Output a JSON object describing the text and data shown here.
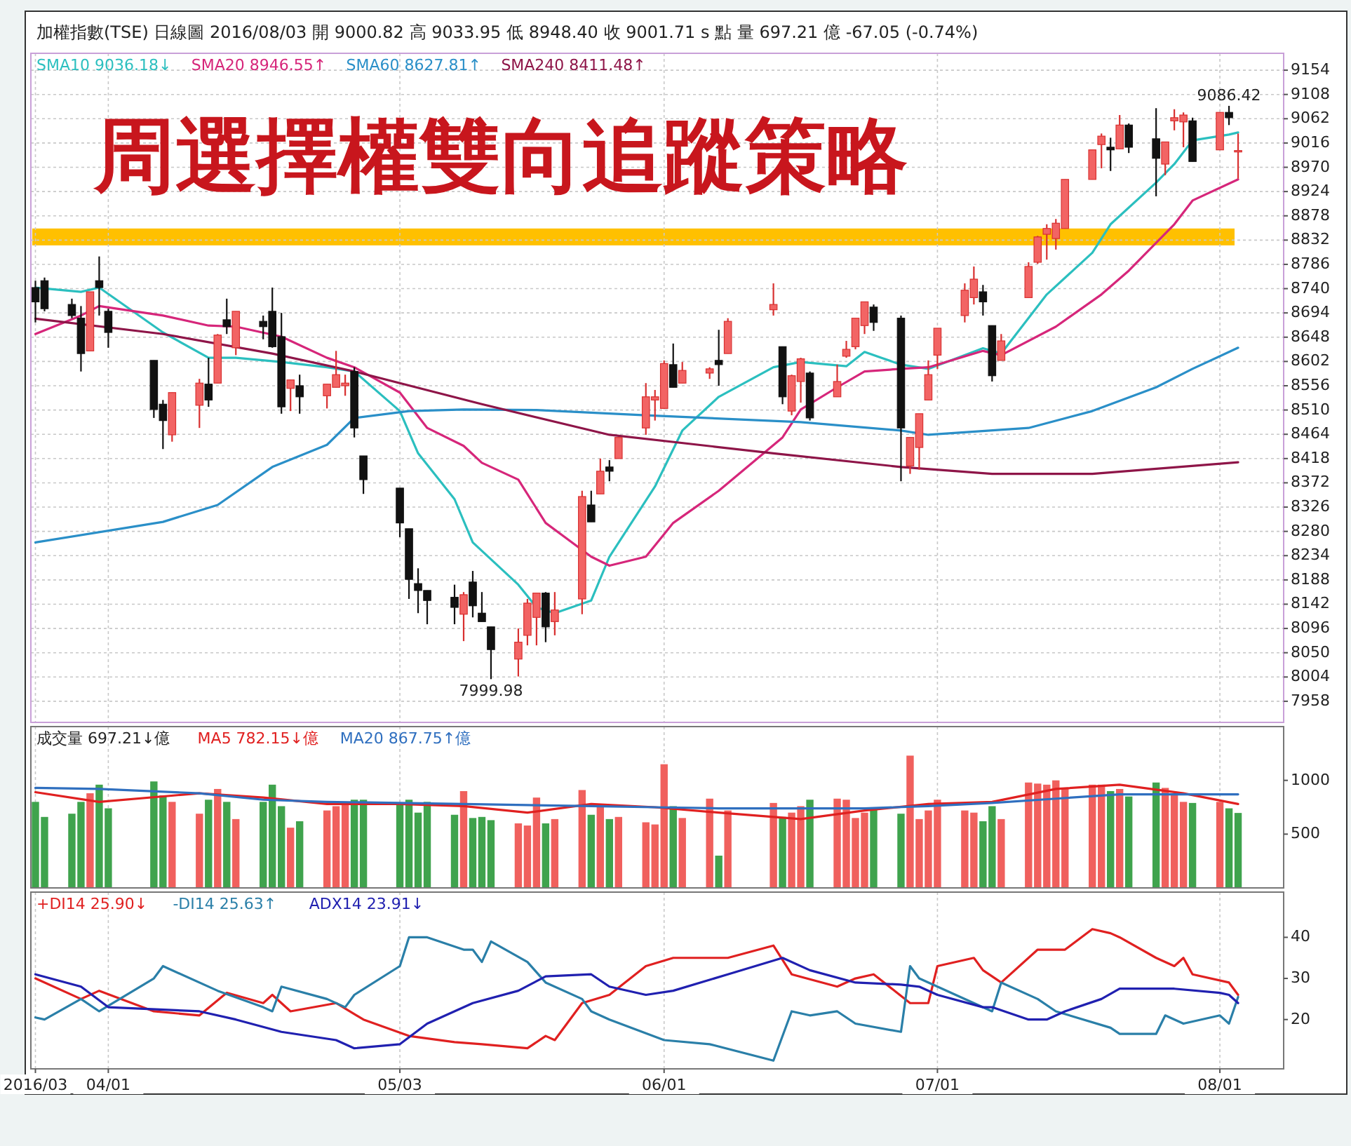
{
  "chart_data": [
    {
      "type": "candlestick",
      "title": "周選擇權雙向追蹤策略",
      "subtitle": "加權指數(TSE) 日線圖 2016/08/03 開 9000.82 高 9033.95 低 8948.40 收 9001.71 s 點 量 697.21 億 -67.05 (-0.74%)",
      "x": [
        "2016-03-24",
        "2016-03-25",
        "2016-03-28",
        "2016-03-29",
        "2016-03-30",
        "2016-03-31",
        "2016-04-01",
        "2016-04-06",
        "2016-04-07",
        "2016-04-08",
        "2016-04-11",
        "2016-04-12",
        "2016-04-13",
        "2016-04-14",
        "2016-04-15",
        "2016-04-18",
        "2016-04-19",
        "2016-04-20",
        "2016-04-21",
        "2016-04-22",
        "2016-04-25",
        "2016-04-26",
        "2016-04-27",
        "2016-04-28",
        "2016-04-29",
        "2016-05-03",
        "2016-05-04",
        "2016-05-05",
        "2016-05-06",
        "2016-05-09",
        "2016-05-10",
        "2016-05-11",
        "2016-05-12",
        "2016-05-13",
        "2016-05-16",
        "2016-05-17",
        "2016-05-18",
        "2016-05-19",
        "2016-05-20",
        "2016-05-23",
        "2016-05-24",
        "2016-05-25",
        "2016-05-26",
        "2016-05-27",
        "2016-05-30",
        "2016-05-31",
        "2016-06-01",
        "2016-06-02",
        "2016-06-03",
        "2016-06-06",
        "2016-06-07",
        "2016-06-08",
        "2016-06-13",
        "2016-06-14",
        "2016-06-15",
        "2016-06-16",
        "2016-06-17",
        "2016-06-20",
        "2016-06-21",
        "2016-06-22",
        "2016-06-23",
        "2016-06-24",
        "2016-06-27",
        "2016-06-28",
        "2016-06-29",
        "2016-06-30",
        "2016-07-01",
        "2016-07-04",
        "2016-07-05",
        "2016-07-06",
        "2016-07-07",
        "2016-07-08",
        "2016-07-11",
        "2016-07-12",
        "2016-07-13",
        "2016-07-14",
        "2016-07-15",
        "2016-07-18",
        "2016-07-19",
        "2016-07-20",
        "2016-07-21",
        "2016-07-22",
        "2016-07-25",
        "2016-07-26",
        "2016-07-27",
        "2016-07-28",
        "2016-07-29",
        "2016-08-01",
        "2016-08-02",
        "2016-08-03"
      ],
      "ohlc": [
        [
          8742,
          8755,
          8676,
          8715
        ],
        [
          8755,
          8761,
          8697,
          8702
        ],
        [
          8710,
          8721,
          8684,
          8689
        ],
        [
          8684,
          8707,
          8583,
          8617
        ],
        [
          8622,
          8734,
          8622,
          8734
        ],
        [
          8755,
          8801,
          8689,
          8742
        ],
        [
          8697,
          8702,
          8628,
          8657
        ],
        [
          8604,
          8604,
          8495,
          8511
        ],
        [
          8521,
          8529,
          8436,
          8490
        ],
        [
          8463,
          8543,
          8450,
          8543
        ],
        [
          8519,
          8569,
          8476,
          8561
        ],
        [
          8559,
          8609,
          8516,
          8529
        ],
        [
          8561,
          8654,
          8561,
          8652
        ],
        [
          8681,
          8721,
          8654,
          8668
        ],
        [
          8628,
          8697,
          8614,
          8697
        ],
        [
          8678,
          8689,
          8644,
          8668
        ],
        [
          8697,
          8742,
          8628,
          8630
        ],
        [
          8649,
          8694,
          8503,
          8516
        ],
        [
          8551,
          8567,
          8508,
          8567
        ],
        [
          8556,
          8577,
          8503,
          8535
        ],
        [
          8537,
          8559,
          8513,
          8559
        ],
        [
          8553,
          8622,
          8553,
          8577
        ],
        [
          8556,
          8577,
          8537,
          8561
        ],
        [
          8583,
          8591,
          8458,
          8476
        ],
        [
          8423,
          8423,
          8351,
          8378
        ],
        [
          8362,
          8362,
          8269,
          8296
        ],
        [
          8285,
          8285,
          8152,
          8189
        ],
        [
          8181,
          8210,
          8125,
          8168
        ],
        [
          8168,
          8168,
          8104,
          8149
        ],
        [
          8155,
          8179,
          8104,
          8136
        ],
        [
          8123,
          8165,
          8072,
          8160
        ],
        [
          8184,
          8205,
          8117,
          8139
        ],
        [
          8125,
          8165,
          8109,
          8109
        ],
        [
          8099,
          8099,
          7999.98,
          8056
        ],
        [
          8038,
          8096,
          8005,
          8070
        ],
        [
          8083,
          8152,
          8064,
          8144
        ],
        [
          8117,
          8163,
          8064,
          8163
        ],
        [
          8163,
          8165,
          8070,
          8099
        ],
        [
          8109,
          8165,
          8083,
          8131
        ],
        [
          8152,
          8357,
          8123,
          8346
        ],
        [
          8330,
          8357,
          8298,
          8298
        ],
        [
          8351,
          8418,
          8351,
          8394
        ],
        [
          8402,
          8415,
          8375,
          8394
        ],
        [
          8418,
          8458,
          8418,
          8458
        ],
        [
          8476,
          8561,
          8463,
          8535
        ],
        [
          8529,
          8548,
          8490,
          8535
        ],
        [
          8513,
          8604,
          8513,
          8598
        ],
        [
          8596,
          8636,
          8553,
          8553
        ],
        [
          8561,
          8601,
          8561,
          8585
        ],
        [
          8580,
          8591,
          8569,
          8588
        ],
        [
          8604,
          8662,
          8556,
          8596
        ],
        [
          8617,
          8684,
          8617,
          8678
        ],
        [
          8700,
          8750,
          8689,
          8710
        ],
        [
          8630,
          8630,
          8521,
          8535
        ],
        [
          8508,
          8577,
          8500,
          8575
        ],
        [
          8564,
          8609,
          8524,
          8607
        ],
        [
          8580,
          8583,
          8490,
          8495
        ],
        [
          8535,
          8596,
          8535,
          8564
        ],
        [
          8612,
          8641,
          8609,
          8625
        ],
        [
          8630,
          8684,
          8625,
          8684
        ],
        [
          8670,
          8715,
          8654,
          8715
        ],
        [
          8705,
          8710,
          8660,
          8676
        ],
        [
          8684,
          8689,
          8375,
          8476
        ],
        [
          8404,
          8458,
          8389,
          8458
        ],
        [
          8439,
          8503,
          8397,
          8503
        ],
        [
          8529,
          8604,
          8529,
          8577
        ],
        [
          8614,
          8665,
          8588,
          8665
        ],
        [
          8689,
          8750,
          8676,
          8737
        ],
        [
          8723,
          8782,
          8710,
          8758
        ],
        [
          8734,
          8747,
          8689,
          8715
        ],
        [
          8670,
          8670,
          8564,
          8575
        ],
        [
          8604,
          8654,
          8604,
          8641
        ],
        [
          8723,
          8790,
          8723,
          8782
        ],
        [
          8790,
          8840,
          8787,
          8838
        ],
        [
          8843,
          8862,
          8795,
          8854
        ],
        [
          8835,
          8872,
          8814,
          8864
        ],
        [
          8854,
          8947,
          8854,
          8947
        ],
        [
          8947,
          9003,
          8947,
          9003
        ],
        [
          9013,
          9034,
          8968,
          9029
        ],
        [
          9008,
          9026,
          8963,
          9003
        ],
        [
          9005,
          9069,
          9005,
          9050
        ],
        [
          9050,
          9053,
          8997,
          9008
        ],
        [
          9024,
          9082,
          8915,
          8987
        ],
        [
          8976,
          9018,
          8955,
          9018
        ],
        [
          9058,
          9080,
          9040,
          9064
        ],
        [
          9056,
          9074,
          9008,
          9069
        ],
        [
          9058,
          9064,
          8981,
          8981
        ],
        [
          9003,
          9074,
          9003,
          9074
        ],
        [
          9074,
          9086.42,
          9050,
          9064
        ],
        [
          9000.82,
          9033.95,
          8948.4,
          9001.71
        ]
      ],
      "series": [
        {
          "type": "line",
          "name": "SMA10 9036.18↓",
          "color": "#2bbfbf",
          "x": [
            "2016-03-24",
            "2016-03-29",
            "2016-03-31",
            "2016-04-07",
            "2016-04-12",
            "2016-04-15",
            "2016-04-20",
            "2016-04-25",
            "2016-04-28",
            "2016-05-03",
            "2016-05-05",
            "2016-05-09",
            "2016-05-11",
            "2016-05-16",
            "2016-05-18",
            "2016-05-20",
            "2016-05-24",
            "2016-05-26",
            "2016-05-31",
            "2016-06-03",
            "2016-06-07",
            "2016-06-13",
            "2016-06-16",
            "2016-06-21",
            "2016-06-23",
            "2016-06-27",
            "2016-06-30",
            "2016-07-06",
            "2016-07-08",
            "2016-07-13",
            "2016-07-18",
            "2016-07-20",
            "2016-07-25",
            "2016-07-27",
            "2016-07-29",
            "2016-08-02",
            "2016-08-03"
          ],
          "values": [
            8742,
            8734,
            8742,
            8657,
            8609,
            8609,
            8601,
            8591,
            8583,
            8508,
            8428,
            8341,
            8259,
            8179,
            8136,
            8125,
            8149,
            8232,
            8365,
            8471,
            8535,
            8591,
            8601,
            8593,
            8620,
            8596,
            8588,
            8627,
            8617,
            8729,
            8808,
            8862,
            8941,
            8976,
            9021,
            9032,
            9036
          ]
        },
        {
          "type": "line",
          "name": "SMA20 8946.55↑",
          "color": "#d6267a",
          "x": [
            "2016-03-24",
            "2016-03-29",
            "2016-03-31",
            "2016-04-07",
            "2016-04-12",
            "2016-04-15",
            "2016-04-20",
            "2016-04-25",
            "2016-04-28",
            "2016-05-03",
            "2016-05-06",
            "2016-05-10",
            "2016-05-12",
            "2016-05-16",
            "2016-05-19",
            "2016-05-24",
            "2016-05-26",
            "2016-05-30",
            "2016-06-02",
            "2016-06-07",
            "2016-06-14",
            "2016-06-16",
            "2016-06-20",
            "2016-06-23",
            "2016-06-27",
            "2016-06-30",
            "2016-07-06",
            "2016-07-08",
            "2016-07-14",
            "2016-07-19",
            "2016-07-22",
            "2016-07-27",
            "2016-07-29",
            "2016-08-03"
          ],
          "values": [
            8654,
            8689,
            8707,
            8689,
            8670,
            8668,
            8649,
            8609,
            8591,
            8543,
            8476,
            8442,
            8410,
            8378,
            8296,
            8232,
            8215,
            8232,
            8296,
            8357,
            8458,
            8511,
            8553,
            8583,
            8588,
            8591,
            8622,
            8614,
            8668,
            8729,
            8774,
            8862,
            8907,
            8947
          ]
        },
        {
          "type": "line",
          "name": "SMA60 8627.81↑",
          "color": "#2a8fc8",
          "x": [
            "2016-03-24",
            "2016-04-07",
            "2016-04-13",
            "2016-04-19",
            "2016-04-25",
            "2016-04-28",
            "2016-05-04",
            "2016-05-10",
            "2016-05-18",
            "2016-05-30",
            "2016-06-16",
            "2016-06-27",
            "2016-06-30",
            "2016-07-11",
            "2016-07-18",
            "2016-07-25",
            "2016-07-29",
            "2016-08-03"
          ],
          "values": [
            8259,
            8298,
            8330,
            8402,
            8444,
            8495,
            8508,
            8511,
            8510,
            8500,
            8487,
            8471,
            8463,
            8476,
            8508,
            8553,
            8588,
            8628
          ]
        },
        {
          "type": "line",
          "name": "SMA240 8411.48↑",
          "color": "#8e1548",
          "x": [
            "2016-03-24",
            "2016-04-07",
            "2016-04-19",
            "2016-04-28",
            "2016-05-12",
            "2016-05-26",
            "2016-06-13",
            "2016-06-27",
            "2016-07-07",
            "2016-07-18",
            "2016-08-03"
          ],
          "values": [
            8683,
            8654,
            8617,
            8583,
            8521,
            8463,
            8428,
            8402,
            8389,
            8389,
            8411
          ]
        }
      ],
      "xlim": [
        "2016-03-23T12:00",
        "2016-08-08"
      ],
      "ylim": [
        7918,
        9186
      ],
      "xticks": [
        {
          "value": "2016-03-24",
          "label": null
        },
        {
          "value": "2016-04-01",
          "label": null
        },
        {
          "value": "2016-05-03",
          "label": null
        },
        {
          "value": "2016-06-01",
          "label": null
        },
        {
          "value": "2016-07-01",
          "label": null
        },
        {
          "value": "2016-08-01",
          "label": null
        }
      ],
      "yticks": [
        7958,
        8004,
        8050,
        8096,
        8142,
        8188,
        8234,
        8280,
        8326,
        8372,
        8418,
        8464,
        8510,
        8556,
        8602,
        8648,
        8694,
        8740,
        8786,
        8832,
        8878,
        8924,
        8970,
        9016,
        9062,
        9108,
        9154
      ],
      "tick_labels": "y",
      "grid": true,
      "legend": "top left",
      "bands": [
        {
          "axis": "y",
          "from": 8822,
          "to": 8854,
          "color": "#ffc000"
        }
      ],
      "annotations": [
        {
          "text": "9086.42",
          "y": 9086.42
        },
        {
          "text": "7999.98",
          "y": 7999.98
        }
      ]
    },
    {
      "type": "bar",
      "x": [
        "2016-03-24",
        "2016-03-25",
        "2016-03-28",
        "2016-03-29",
        "2016-03-30",
        "2016-03-31",
        "2016-04-01",
        "2016-04-06",
        "2016-04-07",
        "2016-04-08",
        "2016-04-11",
        "2016-04-12",
        "2016-04-13",
        "2016-04-14",
        "2016-04-15",
        "2016-04-18",
        "2016-04-19",
        "2016-04-20",
        "2016-04-21",
        "2016-04-22",
        "2016-04-25",
        "2016-04-26",
        "2016-04-27",
        "2016-04-28",
        "2016-04-29",
        "2016-05-03",
        "2016-05-04",
        "2016-05-05",
        "2016-05-06",
        "2016-05-09",
        "2016-05-10",
        "2016-05-11",
        "2016-05-12",
        "2016-05-13",
        "2016-05-16",
        "2016-05-17",
        "2016-05-18",
        "2016-05-19",
        "2016-05-20",
        "2016-05-23",
        "2016-05-24",
        "2016-05-25",
        "2016-05-26",
        "2016-05-27",
        "2016-05-30",
        "2016-05-31",
        "2016-06-01",
        "2016-06-02",
        "2016-06-03",
        "2016-06-06",
        "2016-06-07",
        "2016-06-08",
        "2016-06-13",
        "2016-06-14",
        "2016-06-15",
        "2016-06-16",
        "2016-06-17",
        "2016-06-20",
        "2016-06-21",
        "2016-06-22",
        "2016-06-23",
        "2016-06-24",
        "2016-06-27",
        "2016-06-28",
        "2016-06-29",
        "2016-06-30",
        "2016-07-01",
        "2016-07-04",
        "2016-07-05",
        "2016-07-06",
        "2016-07-07",
        "2016-07-08",
        "2016-07-11",
        "2016-07-12",
        "2016-07-13",
        "2016-07-14",
        "2016-07-15",
        "2016-07-18",
        "2016-07-19",
        "2016-07-20",
        "2016-07-21",
        "2016-07-22",
        "2016-07-25",
        "2016-07-26",
        "2016-07-27",
        "2016-07-28",
        "2016-07-29",
        "2016-08-01",
        "2016-08-02",
        "2016-08-03"
      ],
      "series": [
        {
          "type": "bar",
          "name": "成交量 697.21↓億",
          "values": [
            800,
            660,
            690,
            800,
            880,
            960,
            740,
            990,
            860,
            800,
            690,
            820,
            920,
            800,
            640,
            800,
            960,
            760,
            560,
            620,
            720,
            760,
            800,
            820,
            820,
            770,
            820,
            700,
            800,
            680,
            900,
            650,
            660,
            630,
            600,
            580,
            840,
            600,
            640,
            910,
            680,
            760,
            640,
            660,
            610,
            590,
            1150,
            760,
            650,
            830,
            300,
            720,
            790,
            660,
            700,
            760,
            820,
            830,
            820,
            650,
            700,
            750,
            690,
            1230,
            640,
            720,
            820,
            720,
            700,
            620,
            760,
            640,
            980,
            970,
            960,
            1000,
            920,
            960,
            960,
            900,
            920,
            850,
            980,
            930,
            880,
            800,
            790,
            800,
            740,
            697
          ],
          "colors": [
            "#3fa34d",
            "#3fa34d",
            "#3fa34d",
            "#3fa34d",
            "#f0605d",
            "#3fa34d",
            "#3fa34d",
            "#3fa34d",
            "#3fa34d",
            "#f0605d",
            "#f0605d",
            "#3fa34d",
            "#f0605d",
            "#3fa34d",
            "#f0605d",
            "#3fa34d",
            "#3fa34d",
            "#3fa34d",
            "#f0605d",
            "#3fa34d",
            "#f0605d",
            "#f0605d",
            "#f0605d",
            "#3fa34d",
            "#3fa34d",
            "#3fa34d",
            "#3fa34d",
            "#3fa34d",
            "#3fa34d",
            "#3fa34d",
            "#f0605d",
            "#3fa34d",
            "#3fa34d",
            "#3fa34d",
            "#f0605d",
            "#f0605d",
            "#f0605d",
            "#3fa34d",
            "#f0605d",
            "#f0605d",
            "#3fa34d",
            "#f0605d",
            "#3fa34d",
            "#f0605d",
            "#f0605d",
            "#f0605d",
            "#f0605d",
            "#3fa34d",
            "#f0605d",
            "#f0605d",
            "#3fa34d",
            "#f0605d",
            "#f0605d",
            "#3fa34d",
            "#f0605d",
            "#f0605d",
            "#3fa34d",
            "#f0605d",
            "#f0605d",
            "#f0605d",
            "#f0605d",
            "#3fa34d",
            "#3fa34d",
            "#f0605d",
            "#f0605d",
            "#f0605d",
            "#f0605d",
            "#f0605d",
            "#f0605d",
            "#3fa34d",
            "#3fa34d",
            "#f0605d",
            "#f0605d",
            "#f0605d",
            "#f0605d",
            "#f0605d",
            "#f0605d",
            "#f0605d",
            "#f0605d",
            "#3fa34d",
            "#f0605d",
            "#3fa34d",
            "#3fa34d",
            "#f0605d",
            "#f0605d",
            "#f0605d",
            "#3fa34d",
            "#f0605d",
            "#3fa34d",
            "#3fa34d"
          ]
        },
        {
          "type": "line",
          "name": "MA5 782.15↓億",
          "color": "#e02020",
          "x": [
            "2016-03-24",
            "2016-03-31",
            "2016-04-11",
            "2016-04-18",
            "2016-04-25",
            "2016-05-03",
            "2016-05-10",
            "2016-05-17",
            "2016-05-24",
            "2016-05-31",
            "2016-06-07",
            "2016-06-16",
            "2016-06-23",
            "2016-06-30",
            "2016-07-07",
            "2016-07-14",
            "2016-07-21",
            "2016-07-28",
            "2016-08-03"
          ],
          "values": [
            890,
            800,
            880,
            840,
            780,
            780,
            760,
            700,
            780,
            750,
            700,
            640,
            720,
            780,
            800,
            920,
            960,
            880,
            780
          ]
        },
        {
          "type": "line",
          "name": "MA20 867.75↑億",
          "color": "#2f6fbf",
          "x": [
            "2016-03-24",
            "2016-03-31",
            "2016-04-11",
            "2016-04-18",
            "2016-04-25",
            "2016-05-03",
            "2016-05-10",
            "2016-05-17",
            "2016-05-24",
            "2016-05-31",
            "2016-06-07",
            "2016-06-16",
            "2016-06-23",
            "2016-06-30",
            "2016-07-07",
            "2016-07-14",
            "2016-07-21",
            "2016-07-28",
            "2016-08-03"
          ],
          "values": [
            930,
            920,
            880,
            820,
            800,
            790,
            780,
            770,
            760,
            750,
            740,
            740,
            740,
            760,
            790,
            830,
            870,
            870,
            870
          ]
        }
      ],
      "xlim": [
        "2016-03-23T12:00",
        "2016-08-08"
      ],
      "ylim": [
        0,
        1500
      ],
      "xticks": [
        {
          "value": "2016-03-24",
          "label": null
        },
        {
          "value": "2016-04-01",
          "label": null
        },
        {
          "value": "2016-05-03",
          "label": null
        },
        {
          "value": "2016-06-01",
          "label": null
        },
        {
          "value": "2016-07-01",
          "label": null
        },
        {
          "value": "2016-08-01",
          "label": null
        }
      ],
      "yticks": [
        500,
        1000
      ],
      "tick_labels": "y",
      "grid": "x",
      "legend": "top left"
    },
    {
      "type": "line",
      "series": [
        {
          "name": "+DI14 25.90↓",
          "color": "#e02020",
          "x": [
            "2016-03-24",
            "2016-03-29",
            "2016-03-31",
            "2016-04-06",
            "2016-04-11",
            "2016-04-14",
            "2016-04-18",
            "2016-04-19",
            "2016-04-21",
            "2016-04-26",
            "2016-04-29",
            "2016-05-04",
            "2016-05-09",
            "2016-05-12",
            "2016-05-17",
            "2016-05-19",
            "2016-05-20",
            "2016-05-23",
            "2016-05-26",
            "2016-05-30",
            "2016-06-02",
            "2016-06-08",
            "2016-06-13",
            "2016-06-15",
            "2016-06-20",
            "2016-06-22",
            "2016-06-24",
            "2016-06-28",
            "2016-06-30",
            "2016-07-01",
            "2016-07-05",
            "2016-07-06",
            "2016-07-08",
            "2016-07-12",
            "2016-07-15",
            "2016-07-18",
            "2016-07-20",
            "2016-07-21",
            "2016-07-25",
            "2016-07-27",
            "2016-07-28",
            "2016-07-29",
            "2016-08-02",
            "2016-08-03"
          ],
          "values": [
            30,
            25,
            27,
            22,
            21,
            26.5,
            24,
            26,
            22,
            24,
            20,
            16,
            14.5,
            14,
            13,
            16,
            15,
            24,
            26,
            33,
            35,
            35,
            38,
            31,
            28,
            30,
            31,
            24,
            24,
            33,
            35,
            32,
            29,
            37,
            37,
            42,
            41,
            40,
            35,
            33,
            35,
            31,
            29,
            26
          ]
        },
        {
          "name": "-DI14 25.63↑",
          "color": "#2a7fa8",
          "x": [
            "2016-03-24",
            "2016-03-25",
            "2016-03-29",
            "2016-03-31",
            "2016-04-06",
            "2016-04-07",
            "2016-04-13",
            "2016-04-18",
            "2016-04-19",
            "2016-04-20",
            "2016-04-25",
            "2016-04-27",
            "2016-04-28",
            "2016-05-03",
            "2016-05-04",
            "2016-05-06",
            "2016-05-10",
            "2016-05-11",
            "2016-05-12",
            "2016-05-13",
            "2016-05-17",
            "2016-05-19",
            "2016-05-23",
            "2016-05-24",
            "2016-05-26",
            "2016-06-01",
            "2016-06-06",
            "2016-06-13",
            "2016-06-15",
            "2016-06-17",
            "2016-06-20",
            "2016-06-22",
            "2016-06-27",
            "2016-06-28",
            "2016-06-29",
            "2016-07-05",
            "2016-07-07",
            "2016-07-08",
            "2016-07-12",
            "2016-07-14",
            "2016-07-20",
            "2016-07-21",
            "2016-07-25",
            "2016-07-26",
            "2016-07-28",
            "2016-08-01",
            "2016-08-02",
            "2016-08-03"
          ],
          "values": [
            20.5,
            20,
            25,
            22,
            30,
            33,
            27,
            23,
            22,
            28,
            25,
            23,
            26,
            33,
            40,
            40,
            37,
            37,
            34,
            39,
            34,
            29,
            25,
            22,
            20,
            15,
            14,
            10,
            22,
            21,
            22,
            19,
            17,
            33,
            30,
            24,
            22,
            29,
            25,
            22,
            18,
            16.5,
            16.5,
            21,
            19,
            21,
            19,
            25.5
          ]
        },
        {
          "name": "ADX14 23.91↓",
          "color": "#2020b0",
          "x": [
            "2016-03-24",
            "2016-03-29",
            "2016-04-01",
            "2016-04-11",
            "2016-04-15",
            "2016-04-20",
            "2016-04-26",
            "2016-04-28",
            "2016-05-03",
            "2016-05-06",
            "2016-05-11",
            "2016-05-16",
            "2016-05-19",
            "2016-05-24",
            "2016-05-26",
            "2016-05-30",
            "2016-06-02",
            "2016-06-08",
            "2016-06-14",
            "2016-06-17",
            "2016-06-22",
            "2016-06-27",
            "2016-06-29",
            "2016-07-01",
            "2016-07-06",
            "2016-07-07",
            "2016-07-11",
            "2016-07-13",
            "2016-07-15",
            "2016-07-19",
            "2016-07-21",
            "2016-07-27",
            "2016-08-01",
            "2016-08-02",
            "2016-08-03"
          ],
          "values": [
            31,
            28,
            23,
            22,
            20,
            17,
            15,
            13,
            14,
            19,
            24,
            27,
            30.5,
            31,
            28,
            26,
            27,
            31,
            35,
            32,
            29,
            28.5,
            28,
            26,
            23,
            23,
            20,
            20,
            22,
            25,
            27.5,
            27.5,
            26.5,
            26,
            24
          ]
        }
      ],
      "xlim": [
        "2016-03-23T12:00",
        "2016-08-08"
      ],
      "ylim": [
        8,
        51
      ],
      "xticks": [
        {
          "value": "2016-03-24",
          "label": "2016/03"
        },
        {
          "value": "2016-04-01",
          "label": "04/01"
        },
        {
          "value": "2016-05-03",
          "label": "05/03"
        },
        {
          "value": "2016-06-01",
          "label": "06/01"
        },
        {
          "value": "2016-07-01",
          "label": "07/01"
        },
        {
          "value": "2016-08-01",
          "label": "08/01"
        }
      ],
      "yticks": [
        20,
        30,
        40
      ],
      "grid": "x",
      "legend": "top left"
    }
  ]
}
